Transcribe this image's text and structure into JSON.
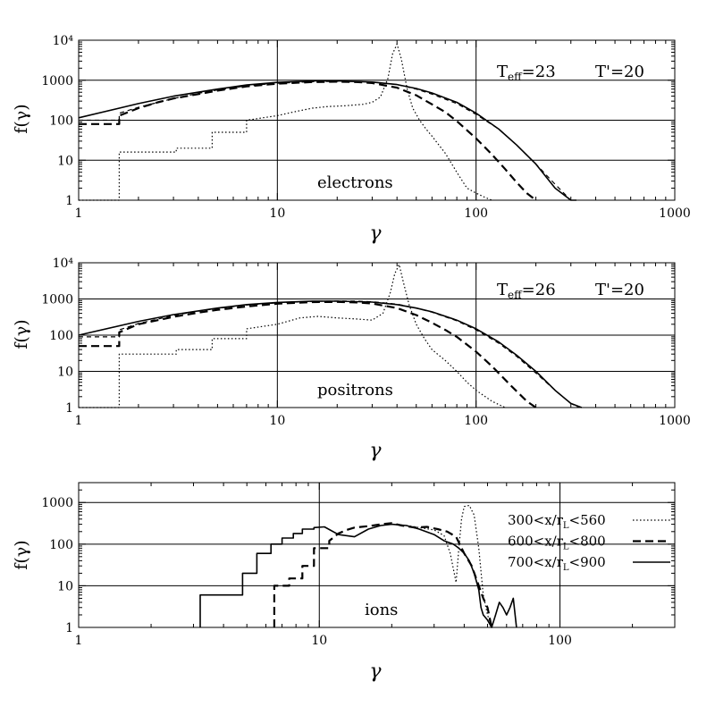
{
  "chart_data": [
    {
      "type": "line",
      "panel": "electrons",
      "ylabel": "f(γ)",
      "xlabel": "γ",
      "xscale": "log",
      "yscale": "log",
      "xlim": [
        1,
        1000
      ],
      "ylim": [
        1,
        10000
      ],
      "xticks": [
        "1",
        "10",
        "100",
        "1000"
      ],
      "yticks": [
        "1",
        "10",
        "100",
        "1000",
        "10⁴"
      ],
      "grid": true,
      "annotations": {
        "label": "electrons",
        "t_eff": "T",
        "t_eff_sub": "eff",
        "t_eff_val": "=23",
        "t_star": "T'=20"
      },
      "series": [
        {
          "style": "dotted",
          "x": [
            1,
            1.6,
            1.6,
            3.1,
            3.1,
            4.7,
            4.7,
            7,
            7,
            10,
            12,
            15,
            18,
            22,
            27,
            30,
            33,
            36,
            38,
            40,
            42,
            45,
            48,
            52,
            56,
            60,
            70,
            80,
            90,
            100,
            110,
            120
          ],
          "y": [
            1,
            1,
            16,
            16,
            20,
            20,
            50,
            50,
            100,
            130,
            160,
            200,
            220,
            230,
            250,
            280,
            380,
            1100,
            4500,
            8000,
            3500,
            600,
            200,
            100,
            60,
            40,
            15,
            5,
            2,
            1.5,
            1.2,
            1
          ]
        },
        {
          "style": "long-dash",
          "x": [
            1,
            1.6,
            1.6,
            2,
            2.5,
            3,
            4,
            5,
            7,
            10,
            15,
            20,
            25,
            30,
            40,
            50,
            60,
            70,
            80,
            100,
            120,
            140,
            160,
            180,
            200
          ],
          "y": [
            80,
            80,
            130,
            200,
            280,
            350,
            450,
            550,
            700,
            820,
            900,
            920,
            900,
            850,
            650,
            420,
            250,
            160,
            95,
            35,
            14,
            6,
            2.8,
            1.5,
            1
          ]
        },
        {
          "style": "short-dash",
          "x": [
            1,
            1.6,
            1.6,
            2,
            3,
            4,
            5,
            7,
            10,
            15,
            20,
            25,
            30,
            40,
            50,
            60,
            80,
            100,
            130,
            160,
            200,
            250,
            300
          ],
          "y": [
            100,
            100,
            150,
            210,
            350,
            470,
            570,
            720,
            840,
            920,
            940,
            930,
            900,
            780,
            600,
            450,
            260,
            140,
            60,
            24,
            8,
            2.5,
            1
          ]
        },
        {
          "style": "solid",
          "x": [
            1,
            2,
            3,
            5,
            7,
            10,
            15,
            20,
            30,
            40,
            50,
            60,
            80,
            100,
            130,
            160,
            200,
            250,
            300,
            320
          ],
          "y": [
            115,
            260,
            400,
            600,
            760,
            880,
            960,
            960,
            900,
            780,
            620,
            480,
            280,
            150,
            60,
            24,
            8,
            2,
            1,
            1
          ]
        }
      ]
    },
    {
      "type": "line",
      "panel": "positrons",
      "ylabel": "f(γ)",
      "xlabel": "γ",
      "xscale": "log",
      "yscale": "log",
      "xlim": [
        1,
        1000
      ],
      "ylim": [
        1,
        10000
      ],
      "xticks": [
        "1",
        "10",
        "100",
        "1000"
      ],
      "yticks": [
        "1",
        "10",
        "100",
        "1000",
        "10⁴"
      ],
      "grid": true,
      "annotations": {
        "label": "positrons",
        "t_eff": "T",
        "t_eff_sub": "eff",
        "t_eff_val": "=26",
        "t_star": "T'=20"
      },
      "series": [
        {
          "style": "dotted",
          "x": [
            1,
            1.6,
            1.6,
            3.1,
            3.1,
            4.7,
            4.7,
            7,
            7,
            10,
            13,
            16,
            20,
            25,
            30,
            34,
            37,
            39,
            41,
            43,
            46,
            50,
            55,
            60,
            70,
            80,
            90,
            100,
            120,
            140
          ],
          "y": [
            1,
            1,
            30,
            30,
            40,
            40,
            80,
            80,
            150,
            200,
            300,
            330,
            300,
            280,
            260,
            400,
            1500,
            5000,
            9000,
            3000,
            700,
            200,
            80,
            40,
            20,
            10,
            5,
            3,
            1.5,
            1
          ]
        },
        {
          "style": "long-dash",
          "x": [
            1,
            1.6,
            1.6,
            2,
            3,
            4,
            5,
            7,
            10,
            15,
            20,
            25,
            30,
            40,
            50,
            60,
            70,
            80,
            100,
            120,
            150,
            180,
            200
          ],
          "y": [
            50,
            50,
            120,
            200,
            320,
            420,
            500,
            620,
            740,
            820,
            830,
            800,
            750,
            560,
            360,
            220,
            140,
            90,
            35,
            14,
            4,
            1.5,
            1
          ]
        },
        {
          "style": "short-dash",
          "x": [
            1,
            1.6,
            1.6,
            2,
            3,
            4,
            5,
            7,
            10,
            15,
            20,
            25,
            30,
            40,
            50,
            60,
            80,
            100,
            130,
            160,
            200,
            250,
            300,
            330
          ],
          "y": [
            90,
            90,
            140,
            210,
            350,
            460,
            550,
            680,
            780,
            860,
            880,
            870,
            840,
            720,
            560,
            430,
            250,
            140,
            60,
            26,
            9,
            3,
            1.3,
            1
          ]
        },
        {
          "style": "solid",
          "x": [
            1,
            2,
            3,
            5,
            7,
            10,
            15,
            20,
            30,
            40,
            50,
            60,
            80,
            100,
            130,
            160,
            200,
            250,
            300,
            340
          ],
          "y": [
            100,
            240,
            370,
            560,
            700,
            800,
            870,
            870,
            820,
            700,
            560,
            440,
            260,
            150,
            65,
            28,
            10,
            3,
            1.3,
            1
          ]
        }
      ]
    },
    {
      "type": "line",
      "panel": "ions",
      "ylabel": "f(γ)",
      "xlabel": "γ",
      "xscale": "log",
      "yscale": "log",
      "xlim": [
        1,
        300
      ],
      "ylim": [
        1,
        3000
      ],
      "xticks": [
        "1",
        "10",
        "100"
      ],
      "yticks": [
        "1",
        "10",
        "100",
        "1000"
      ],
      "grid": true,
      "annotations": {
        "label": "ions"
      },
      "legend": [
        {
          "pre": "300<x/r",
          "sub": "L",
          "post": "<560",
          "style": "dotted"
        },
        {
          "pre": "600<x/r",
          "sub": "L",
          "post": "<800",
          "style": "long-dash"
        },
        {
          "pre": "700<x/r",
          "sub": "L",
          "post": "<900",
          "style": "solid"
        }
      ],
      "series": [
        {
          "style": "dotted",
          "x": [
            23,
            26,
            30,
            33,
            35,
            37,
            38,
            39,
            40,
            42,
            44,
            46,
            48,
            50,
            52
          ],
          "y": [
            280,
            250,
            220,
            160,
            60,
            12,
            80,
            400,
            800,
            850,
            500,
            80,
            6,
            2,
            1
          ]
        },
        {
          "style": "long-dash",
          "x": [
            6.5,
            6.5,
            7.5,
            7.5,
            8.5,
            8.5,
            9.5,
            9.5,
            11,
            11,
            12,
            13,
            14,
            16,
            18,
            20,
            22,
            25,
            28,
            31,
            34,
            37,
            40,
            43,
            46,
            48,
            50,
            52
          ],
          "y": [
            1,
            10,
            10,
            15,
            15,
            30,
            30,
            80,
            80,
            120,
            180,
            220,
            250,
            270,
            300,
            320,
            280,
            250,
            260,
            230,
            200,
            150,
            60,
            30,
            10,
            5,
            3,
            1
          ]
        },
        {
          "style": "solid",
          "x": [
            3.2,
            3.2,
            4,
            4,
            4.8,
            4.8,
            5.5,
            5.5,
            6.3,
            6.3,
            7,
            7,
            7.8,
            7.8,
            8.5,
            8.5,
            9.5,
            9.5,
            10.5,
            12,
            14,
            16,
            18,
            20,
            23,
            26,
            30,
            33,
            36,
            38,
            40,
            42,
            44,
            46,
            47,
            48,
            50,
            52,
            54,
            56,
            58,
            60,
            62,
            64,
            66
          ],
          "y": [
            1,
            6,
            6,
            6,
            6,
            20,
            20,
            60,
            60,
            100,
            100,
            140,
            140,
            180,
            180,
            230,
            230,
            250,
            260,
            170,
            150,
            230,
            280,
            300,
            280,
            230,
            170,
            120,
            100,
            80,
            60,
            40,
            20,
            8,
            3,
            2,
            1.5,
            1,
            2,
            4,
            3,
            2,
            3,
            5,
            1
          ]
        }
      ]
    }
  ]
}
